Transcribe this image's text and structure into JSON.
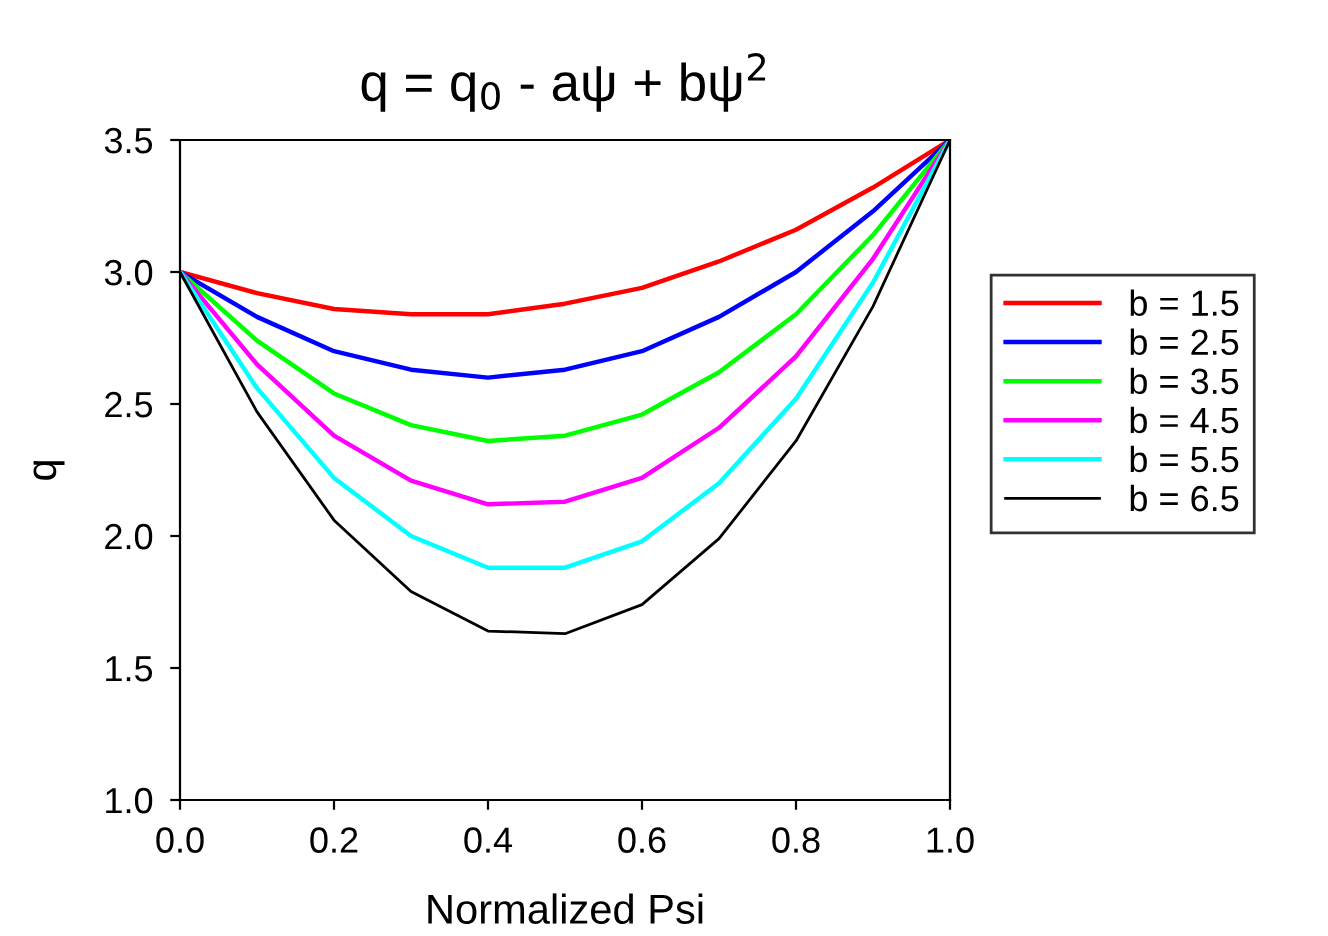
{
  "chart_data": {
    "type": "line",
    "title": "q = q$_{0}$ - aψ + bψ$^{2}$",
    "xlabel": "Normalized Psi",
    "ylabel": "q",
    "x": [
      0,
      0.1,
      0.2,
      0.3,
      0.4,
      0.5,
      0.6,
      0.7,
      0.8,
      0.9,
      1.0
    ],
    "series": [
      {
        "name": "b = 1.5",
        "color": "#ff0000",
        "values": [
          3.0,
          2.92,
          2.86,
          2.84,
          2.84,
          2.88,
          2.94,
          3.04,
          3.16,
          3.32,
          3.5
        ]
      },
      {
        "name": "b = 2.5",
        "color": "#0000ff",
        "values": [
          3.0,
          2.83,
          2.7,
          2.63,
          2.6,
          2.63,
          2.7,
          2.83,
          3.0,
          3.23,
          3.5
        ]
      },
      {
        "name": "b = 3.5",
        "color": "#00ff00",
        "values": [
          3.0,
          2.74,
          2.54,
          2.42,
          2.36,
          2.38,
          2.46,
          2.62,
          2.84,
          3.14,
          3.5
        ]
      },
      {
        "name": "b = 4.5",
        "color": "#ff00ff",
        "values": [
          3.0,
          2.65,
          2.38,
          2.21,
          2.12,
          2.13,
          2.22,
          2.41,
          2.68,
          3.05,
          3.5
        ]
      },
      {
        "name": "b = 5.5",
        "color": "#00ffff",
        "values": [
          3.0,
          2.56,
          2.22,
          2.0,
          1.88,
          1.88,
          1.98,
          2.2,
          2.52,
          2.96,
          3.5
        ]
      },
      {
        "name": "b = 6.5",
        "color": "#000000",
        "values": [
          3.0,
          2.47,
          2.06,
          1.79,
          1.64,
          1.63,
          1.74,
          1.99,
          2.36,
          2.87,
          3.5
        ]
      }
    ],
    "xlim": [
      0,
      1.0
    ],
    "ylim": [
      1.0,
      3.5
    ],
    "xticks": [
      {
        "value": 0,
        "label": "0.0"
      },
      {
        "value": 0.2,
        "label": "0.2"
      },
      {
        "value": 0.4,
        "label": "0.4"
      },
      {
        "value": 0.6,
        "label": "0.6"
      },
      {
        "value": 0.8,
        "label": "0.8"
      },
      {
        "value": 1.0,
        "label": "1.0"
      }
    ],
    "yticks": [
      {
        "value": 1.0,
        "label": "1.0"
      },
      {
        "value": 1.5,
        "label": "1.5"
      },
      {
        "value": 2.0,
        "label": "2.0"
      },
      {
        "value": 2.5,
        "label": "2.5"
      },
      {
        "value": 3.0,
        "label": "3.0"
      },
      {
        "value": 3.5,
        "label": "3.5"
      }
    ],
    "grid": false,
    "legend": "right",
    "marker": "none",
    "line_style": "solid"
  }
}
